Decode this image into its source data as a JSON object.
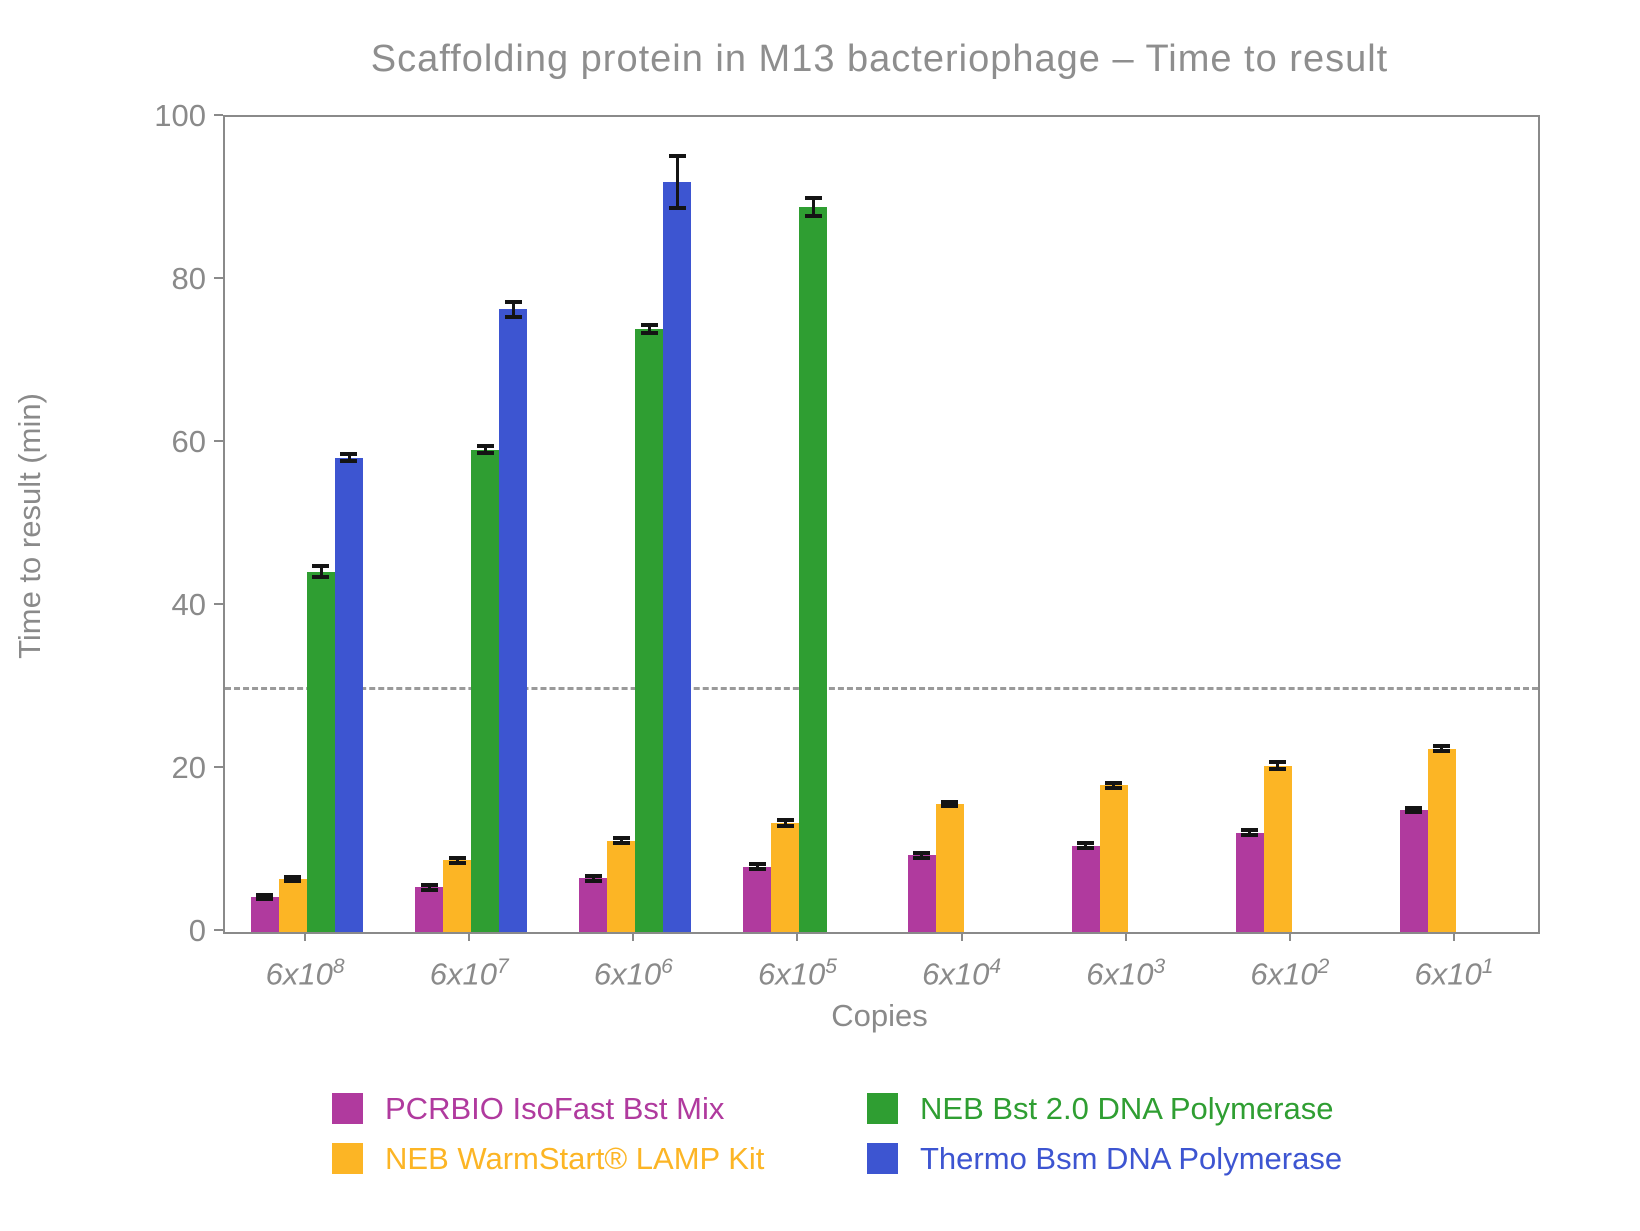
{
  "chart_data": {
    "type": "bar",
    "title": "Scaffolding protein in M13 bacteriophage – Time to result",
    "xlabel": "Copies",
    "ylabel": "Time to result (min)",
    "ylim": [
      0,
      100
    ],
    "yticks": [
      0,
      20,
      40,
      60,
      80,
      100
    ],
    "grid": false,
    "threshold_line": {
      "y": 30,
      "style": "dashed",
      "color": "#9a9a9a"
    },
    "categories": [
      {
        "mantissa": "6x10",
        "exponent": "8"
      },
      {
        "mantissa": "6x10",
        "exponent": "7"
      },
      {
        "mantissa": "6x10",
        "exponent": "6"
      },
      {
        "mantissa": "6x10",
        "exponent": "5"
      },
      {
        "mantissa": "6x10",
        "exponent": "4"
      },
      {
        "mantissa": "6x10",
        "exponent": "3"
      },
      {
        "mantissa": "6x10",
        "exponent": "2"
      },
      {
        "mantissa": "6x10",
        "exponent": "1"
      }
    ],
    "series": [
      {
        "name": "PCRBIO IsoFast Bst Mix",
        "color": "#b03a9e",
        "values": [
          4.3,
          5.5,
          6.6,
          8.0,
          9.4,
          10.6,
          12.2,
          15.0
        ],
        "errors": [
          0.3,
          0.3,
          0.3,
          0.3,
          0.3,
          0.3,
          0.3,
          0.25
        ]
      },
      {
        "name": "NEB WarmStart® LAMP Kit",
        "color": "#fcb525",
        "values": [
          6.5,
          8.8,
          11.2,
          13.4,
          15.7,
          18.0,
          20.4,
          22.5
        ],
        "errors": [
          0.3,
          0.3,
          0.3,
          0.4,
          0.3,
          0.3,
          0.4,
          0.3
        ]
      },
      {
        "name": "NEB Bst 2.0 DNA Polymerase",
        "color": "#2f9e32",
        "values": [
          44.2,
          59.2,
          74.0,
          89.0,
          null,
          null,
          null,
          null
        ],
        "errors": [
          0.7,
          0.4,
          0.5,
          1.1,
          null,
          null,
          null,
          null
        ]
      },
      {
        "name": "Thermo Bsm DNA Polymerase",
        "color": "#3d55d1",
        "values": [
          58.2,
          76.4,
          92.0,
          null,
          null,
          null,
          null,
          null
        ],
        "errors": [
          0.4,
          0.9,
          3.2,
          null,
          null,
          null,
          null,
          null
        ]
      }
    ],
    "legend": {
      "position": "bottom",
      "order": [
        0,
        2,
        1,
        3
      ]
    }
  }
}
